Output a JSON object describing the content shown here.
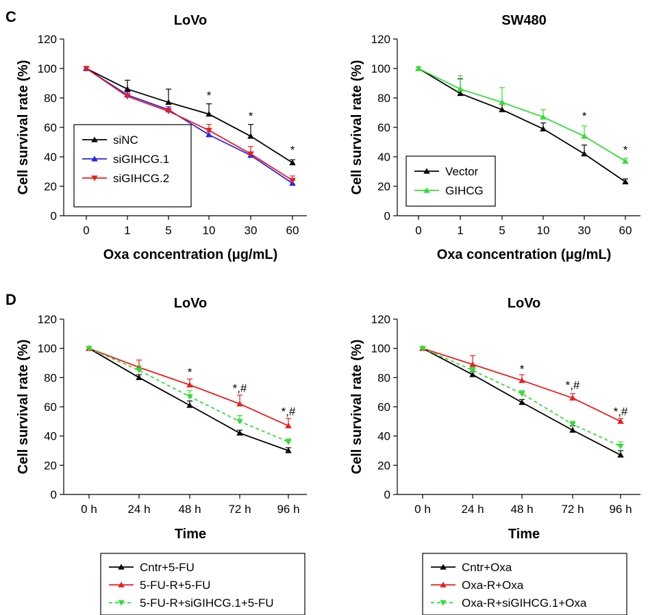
{
  "panel_letters": [
    "C",
    "D"
  ],
  "chart_data": [
    {
      "type": "line",
      "panel": "C",
      "title": "LoVo",
      "xlabel": "Oxa concentration (μg/mL)",
      "ylabel": "Cell survival rate (%)",
      "categories": [
        "0",
        "1",
        "5",
        "10",
        "30",
        "60"
      ],
      "ylim": [
        0,
        120
      ],
      "yticks": [
        "0",
        "20",
        "40",
        "60",
        "80",
        "100",
        "120"
      ],
      "grid": false,
      "legend": "inside bottom-left",
      "series": [
        {
          "name": "siNC",
          "color": "#000000",
          "marker": "triangle-up",
          "dashed": false,
          "values": [
            100,
            86,
            77,
            69,
            54,
            36
          ],
          "errors": [
            1,
            6,
            9,
            7,
            8,
            2
          ]
        },
        {
          "name": "siGIHCG.1",
          "color": "#2424ee",
          "marker": "triangle-up",
          "dashed": false,
          "values": [
            100,
            82,
            72,
            55,
            41,
            22
          ],
          "errors": [
            1,
            2,
            2,
            2,
            2,
            2
          ]
        },
        {
          "name": "siGIHCG.2",
          "color": "#ee1c1c",
          "marker": "triangle-down",
          "dashed": false,
          "values": [
            100,
            81,
            71,
            58,
            42,
            24
          ],
          "errors": [
            1,
            2,
            2,
            4,
            5,
            3
          ]
        }
      ],
      "annotations": [
        {
          "category": "10",
          "value": 81,
          "text": "*"
        },
        {
          "category": "30",
          "value": 67,
          "text": "*"
        },
        {
          "category": "60",
          "value": 44,
          "text": "*"
        }
      ]
    },
    {
      "type": "line",
      "panel": "",
      "title": "SW480",
      "xlabel": "Oxa concentration (μg/mL)",
      "ylabel": "Cell survival rate (%)",
      "categories": [
        "0",
        "1",
        "5",
        "10",
        "30",
        "60"
      ],
      "ylim": [
        0,
        120
      ],
      "yticks": [
        "0",
        "20",
        "40",
        "60",
        "80",
        "100",
        "120"
      ],
      "grid": false,
      "legend": "inside bottom-left",
      "series": [
        {
          "name": "Vector",
          "color": "#000000",
          "marker": "triangle-up",
          "dashed": false,
          "values": [
            100,
            83,
            72,
            59,
            42,
            23
          ],
          "errors": [
            1,
            10,
            4,
            4,
            6,
            2
          ]
        },
        {
          "name": "GIHCG",
          "color": "#33dd33",
          "marker": "triangle-up",
          "dashed": false,
          "values": [
            100,
            86,
            77,
            67,
            54,
            37
          ],
          "errors": [
            1,
            9,
            10,
            5,
            7,
            2
          ]
        }
      ],
      "annotations": [
        {
          "category": "30",
          "value": 67,
          "text": "*"
        },
        {
          "category": "60",
          "value": 44,
          "text": "*"
        }
      ]
    },
    {
      "type": "line",
      "panel": "D",
      "title": "LoVo",
      "xlabel": "Time",
      "ylabel": "Cell survival rate (%)",
      "categories": [
        "0 h",
        "24 h",
        "48 h",
        "72 h",
        "96 h"
      ],
      "ylim": [
        0,
        120
      ],
      "yticks": [
        "0",
        "20",
        "40",
        "60",
        "80",
        "100",
        "120"
      ],
      "grid": false,
      "legend": "below",
      "series": [
        {
          "name": "Cntr+5-FU",
          "color": "#000000",
          "marker": "triangle-up",
          "dashed": false,
          "values": [
            100,
            80,
            61,
            42,
            30
          ],
          "errors": [
            1,
            2,
            3,
            2,
            2
          ]
        },
        {
          "name": "5-FU-R+5-FU",
          "color": "#ee1c1c",
          "marker": "triangle-up",
          "dashed": false,
          "values": [
            100,
            87,
            75,
            62,
            47
          ],
          "errors": [
            1,
            5,
            4,
            6,
            5
          ]
        },
        {
          "name": "5-FU-R+siGIHCG.1+5-FU",
          "color": "#33dd33",
          "marker": "triangle-down",
          "dashed": true,
          "values": [
            100,
            85,
            67,
            50,
            36
          ],
          "errors": [
            1,
            3,
            4,
            4,
            2
          ]
        }
      ],
      "annotations": [
        {
          "category": "48 h",
          "value": 83,
          "text": "*"
        },
        {
          "category": "72 h",
          "value": 72,
          "text": "*,#"
        },
        {
          "category": "96 h",
          "value": 56,
          "text": "*,#"
        }
      ]
    },
    {
      "type": "line",
      "panel": "",
      "title": "LoVo",
      "xlabel": "Time",
      "ylabel": "Cell survival rate (%)",
      "categories": [
        "0 h",
        "24 h",
        "48 h",
        "72 h",
        "96 h"
      ],
      "ylim": [
        0,
        120
      ],
      "yticks": [
        "0",
        "20",
        "40",
        "60",
        "80",
        "100",
        "120"
      ],
      "grid": false,
      "legend": "below",
      "series": [
        {
          "name": "Cntr+Oxa",
          "color": "#000000",
          "marker": "triangle-up",
          "dashed": false,
          "values": [
            100,
            82,
            63,
            44,
            27
          ],
          "errors": [
            1,
            2,
            2,
            3,
            3
          ]
        },
        {
          "name": "Oxa-R+Oxa",
          "color": "#ee1c1c",
          "marker": "triangle-up",
          "dashed": false,
          "values": [
            100,
            89,
            78,
            66,
            50
          ],
          "errors": [
            1,
            6,
            4,
            3,
            2
          ]
        },
        {
          "name": "Oxa-R+siGIHCG.1+Oxa",
          "color": "#33dd33",
          "marker": "triangle-down",
          "dashed": true,
          "values": [
            100,
            85,
            69,
            48,
            33
          ],
          "errors": [
            1,
            2,
            2,
            2,
            3
          ]
        }
      ],
      "annotations": [
        {
          "category": "48 h",
          "value": 85,
          "text": "*"
        },
        {
          "category": "72 h",
          "value": 74,
          "text": "*,#"
        },
        {
          "category": "96 h",
          "value": 56,
          "text": "*,#"
        }
      ]
    }
  ]
}
